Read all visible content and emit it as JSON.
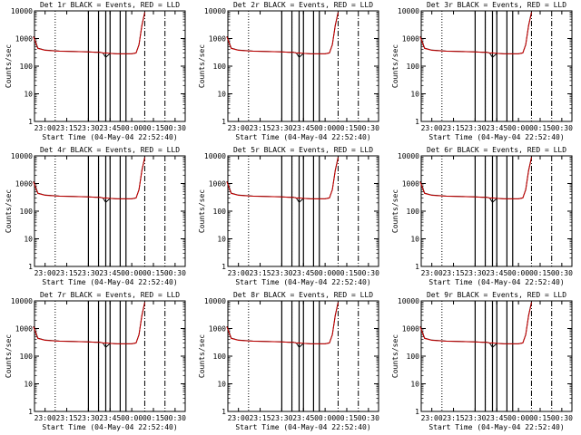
{
  "colors": {
    "events": "#000000",
    "lld": "#cc0000",
    "background": "#ffffff"
  },
  "chart_data": [
    {
      "type": "line",
      "title": "Det 1r BLACK = Events, RED = LLD",
      "xlabel": "Start Time (04-May-04 22:52:40)",
      "ylabel": "Counts/sec",
      "xticks": [
        "23:00",
        "23:15",
        "23:30",
        "23:45",
        "00:00",
        "00:15",
        "00:30"
      ],
      "yticks": [
        "1",
        "10",
        "100",
        "1000",
        "10000"
      ],
      "ylim": [
        1,
        10000
      ],
      "yscale": "log",
      "xlim": [
        "22:52:40",
        "00:37:00"
      ],
      "x": [
        "22:52",
        "22:55",
        "23:00",
        "23:10",
        "23:20",
        "23:30",
        "23:35",
        "23:38",
        "23:40",
        "23:42",
        "23:45",
        "23:50",
        "23:55",
        "00:00",
        "00:03",
        "00:05",
        "00:07",
        "00:09"
      ],
      "series": [
        {
          "values": [
            1200,
            450,
            380,
            350,
            340,
            330,
            320,
            320,
            300,
            210,
            290,
            280,
            280,
            280,
            300,
            600,
            3000,
            9000
          ]
        },
        {
          "values": [
            1150,
            440,
            375,
            348,
            338,
            328,
            318,
            318,
            298,
            300,
            290,
            280,
            280,
            280,
            300,
            590,
            2900,
            8800
          ]
        }
      ],
      "dotted_lines": [
        "23:07",
        "23:37"
      ],
      "solid_lines": [
        "23:30",
        "23:37",
        "23:42",
        "23:45",
        "23:52",
        "23:56"
      ],
      "dashdot_lines": [
        "00:09",
        "00:23"
      ]
    },
    {
      "type": "line",
      "title": "Det 2r BLACK = Events, RED = LLD",
      "xlabel": "Start Time (04-May-04 22:52:40)",
      "ylabel": "Counts/sec",
      "xticks": [
        "23:00",
        "23:15",
        "23:30",
        "23:45",
        "00:00",
        "00:15",
        "00:30"
      ],
      "yticks": [
        "1",
        "10",
        "100",
        "1000",
        "10000"
      ],
      "ylim": [
        1,
        10000
      ],
      "yscale": "log",
      "xlim": [
        "22:52:40",
        "00:37:00"
      ],
      "x": [
        "22:52",
        "22:55",
        "23:00",
        "23:10",
        "23:20",
        "23:30",
        "23:35",
        "23:38",
        "23:40",
        "23:42",
        "23:45",
        "23:50",
        "23:55",
        "00:00",
        "00:03",
        "00:05",
        "00:07",
        "00:09"
      ],
      "series": [
        {
          "values": [
            1200,
            450,
            380,
            350,
            340,
            330,
            320,
            320,
            300,
            210,
            290,
            280,
            280,
            280,
            300,
            600,
            3000,
            9000
          ]
        },
        {
          "values": [
            1150,
            440,
            375,
            348,
            338,
            328,
            318,
            318,
            298,
            300,
            290,
            280,
            280,
            280,
            300,
            590,
            2900,
            8800
          ]
        }
      ],
      "dotted_lines": [
        "23:07",
        "23:37"
      ],
      "solid_lines": [
        "23:30",
        "23:37",
        "23:42",
        "23:45",
        "23:52",
        "23:56"
      ],
      "dashdot_lines": [
        "00:09",
        "00:23"
      ]
    },
    {
      "type": "line",
      "title": "Det 3r BLACK = Events, RED = LLD",
      "xlabel": "Start Time (04-May-04 22:52:40)",
      "ylabel": "Counts/sec",
      "xticks": [
        "23:00",
        "23:15",
        "23:30",
        "23:45",
        "00:00",
        "00:15",
        "00:30"
      ],
      "yticks": [
        "1",
        "10",
        "100",
        "1000",
        "10000"
      ],
      "ylim": [
        1,
        10000
      ],
      "yscale": "log",
      "xlim": [
        "22:52:40",
        "00:37:00"
      ],
      "x": [
        "22:52",
        "22:55",
        "23:00",
        "23:10",
        "23:20",
        "23:30",
        "23:35",
        "23:38",
        "23:40",
        "23:42",
        "23:45",
        "23:50",
        "23:55",
        "00:00",
        "00:03",
        "00:05",
        "00:07",
        "00:09"
      ],
      "series": [
        {
          "values": [
            1200,
            450,
            380,
            350,
            340,
            330,
            320,
            320,
            300,
            210,
            290,
            280,
            280,
            280,
            300,
            600,
            3000,
            9000
          ]
        },
        {
          "values": [
            1150,
            440,
            375,
            348,
            338,
            328,
            318,
            318,
            298,
            300,
            290,
            280,
            280,
            280,
            300,
            590,
            2900,
            8800
          ]
        }
      ],
      "dotted_lines": [
        "23:07",
        "23:37"
      ],
      "solid_lines": [
        "23:30",
        "23:37",
        "23:42",
        "23:45",
        "23:52",
        "23:56"
      ],
      "dashdot_lines": [
        "00:09",
        "00:23"
      ]
    },
    {
      "type": "line",
      "title": "Det 4r BLACK = Events, RED = LLD",
      "xlabel": "Start Time (04-May-04 22:52:40)",
      "ylabel": "Counts/sec",
      "xticks": [
        "23:00",
        "23:15",
        "23:30",
        "23:45",
        "00:00",
        "00:15",
        "00:30"
      ],
      "yticks": [
        "1",
        "10",
        "100",
        "1000",
        "10000"
      ],
      "ylim": [
        1,
        10000
      ],
      "yscale": "log",
      "xlim": [
        "22:52:40",
        "00:37:00"
      ],
      "x": [
        "22:52",
        "22:55",
        "23:00",
        "23:10",
        "23:20",
        "23:30",
        "23:35",
        "23:38",
        "23:40",
        "23:42",
        "23:45",
        "23:50",
        "23:55",
        "00:00",
        "00:03",
        "00:05",
        "00:07",
        "00:09"
      ],
      "series": [
        {
          "values": [
            1200,
            450,
            380,
            350,
            340,
            330,
            320,
            320,
            300,
            210,
            290,
            280,
            280,
            280,
            300,
            600,
            3000,
            9000
          ]
        },
        {
          "values": [
            1150,
            440,
            375,
            348,
            338,
            328,
            318,
            318,
            298,
            300,
            290,
            280,
            280,
            280,
            300,
            590,
            2900,
            8800
          ]
        }
      ],
      "dotted_lines": [
        "23:07",
        "23:37"
      ],
      "solid_lines": [
        "23:30",
        "23:37",
        "23:42",
        "23:45",
        "23:52",
        "23:56"
      ],
      "dashdot_lines": [
        "00:09",
        "00:23"
      ]
    },
    {
      "type": "line",
      "title": "Det 5r BLACK = Events, RED = LLD",
      "xlabel": "Start Time (04-May-04 22:52:40)",
      "ylabel": "Counts/sec",
      "xticks": [
        "23:00",
        "23:15",
        "23:30",
        "23:45",
        "00:00",
        "00:15",
        "00:30"
      ],
      "yticks": [
        "1",
        "10",
        "100",
        "1000",
        "10000"
      ],
      "ylim": [
        1,
        10000
      ],
      "yscale": "log",
      "xlim": [
        "22:52:40",
        "00:37:00"
      ],
      "x": [
        "22:52",
        "22:55",
        "23:00",
        "23:10",
        "23:20",
        "23:30",
        "23:35",
        "23:38",
        "23:40",
        "23:42",
        "23:45",
        "23:50",
        "23:55",
        "00:00",
        "00:03",
        "00:05",
        "00:07",
        "00:09"
      ],
      "series": [
        {
          "values": [
            1200,
            450,
            380,
            350,
            340,
            330,
            320,
            320,
            300,
            210,
            290,
            280,
            280,
            280,
            300,
            600,
            3000,
            9000
          ]
        },
        {
          "values": [
            1150,
            440,
            375,
            348,
            338,
            328,
            318,
            318,
            298,
            300,
            290,
            280,
            280,
            280,
            300,
            590,
            2900,
            8800
          ]
        }
      ],
      "dotted_lines": [
        "23:07",
        "23:37"
      ],
      "solid_lines": [
        "23:30",
        "23:37",
        "23:42",
        "23:45",
        "23:52",
        "23:56"
      ],
      "dashdot_lines": [
        "00:09",
        "00:23"
      ]
    },
    {
      "type": "line",
      "title": "Det 6r BLACK = Events, RED = LLD",
      "xlabel": "Start Time (04-May-04 22:52:40)",
      "ylabel": "Counts/sec",
      "xticks": [
        "23:00",
        "23:15",
        "23:30",
        "23:45",
        "00:00",
        "00:15",
        "00:30"
      ],
      "yticks": [
        "1",
        "10",
        "100",
        "1000",
        "10000"
      ],
      "ylim": [
        1,
        10000
      ],
      "yscale": "log",
      "xlim": [
        "22:52:40",
        "00:37:00"
      ],
      "x": [
        "22:52",
        "22:55",
        "23:00",
        "23:10",
        "23:20",
        "23:30",
        "23:35",
        "23:38",
        "23:40",
        "23:42",
        "23:45",
        "23:50",
        "23:55",
        "00:00",
        "00:03",
        "00:05",
        "00:07",
        "00:09"
      ],
      "series": [
        {
          "values": [
            1200,
            450,
            380,
            350,
            340,
            330,
            320,
            320,
            300,
            210,
            290,
            280,
            280,
            280,
            300,
            600,
            3000,
            9000
          ]
        },
        {
          "values": [
            1150,
            440,
            375,
            348,
            338,
            328,
            318,
            318,
            298,
            300,
            290,
            280,
            280,
            280,
            300,
            590,
            2900,
            8800
          ]
        }
      ],
      "dotted_lines": [
        "23:07",
        "23:37"
      ],
      "solid_lines": [
        "23:30",
        "23:37",
        "23:42",
        "23:45",
        "23:52",
        "23:56"
      ],
      "dashdot_lines": [
        "00:09",
        "00:23"
      ]
    },
    {
      "type": "line",
      "title": "Det 7r BLACK = Events, RED = LLD",
      "xlabel": "Start Time (04-May-04 22:52:40)",
      "ylabel": "Counts/sec",
      "xticks": [
        "23:00",
        "23:15",
        "23:30",
        "23:45",
        "00:00",
        "00:15",
        "00:30"
      ],
      "yticks": [
        "1",
        "10",
        "100",
        "1000",
        "10000"
      ],
      "ylim": [
        1,
        10000
      ],
      "yscale": "log",
      "xlim": [
        "22:52:40",
        "00:37:00"
      ],
      "x": [
        "22:52",
        "22:55",
        "23:00",
        "23:10",
        "23:20",
        "23:30",
        "23:35",
        "23:38",
        "23:40",
        "23:42",
        "23:45",
        "23:50",
        "23:55",
        "00:00",
        "00:03",
        "00:05",
        "00:07",
        "00:09"
      ],
      "series": [
        {
          "values": [
            1200,
            450,
            380,
            350,
            340,
            330,
            320,
            320,
            300,
            210,
            290,
            280,
            280,
            280,
            300,
            600,
            3000,
            9000
          ]
        },
        {
          "values": [
            1150,
            440,
            375,
            348,
            338,
            328,
            318,
            318,
            298,
            300,
            290,
            280,
            280,
            280,
            300,
            590,
            2900,
            8800
          ]
        }
      ],
      "dotted_lines": [
        "23:07",
        "23:37"
      ],
      "solid_lines": [
        "23:30",
        "23:37",
        "23:42",
        "23:45",
        "23:52",
        "23:56"
      ],
      "dashdot_lines": [
        "00:09",
        "00:23"
      ]
    },
    {
      "type": "line",
      "title": "Det 8r BLACK = Events, RED = LLD",
      "xlabel": "Start Time (04-May-04 22:52:40)",
      "ylabel": "Counts/sec",
      "xticks": [
        "23:00",
        "23:15",
        "23:30",
        "23:45",
        "00:00",
        "00:15",
        "00:30"
      ],
      "yticks": [
        "1",
        "10",
        "100",
        "1000",
        "10000"
      ],
      "ylim": [
        1,
        10000
      ],
      "yscale": "log",
      "xlim": [
        "22:52:40",
        "00:37:00"
      ],
      "x": [
        "22:52",
        "22:55",
        "23:00",
        "23:10",
        "23:20",
        "23:30",
        "23:35",
        "23:38",
        "23:40",
        "23:42",
        "23:45",
        "23:50",
        "23:55",
        "00:00",
        "00:03",
        "00:05",
        "00:07",
        "00:09"
      ],
      "series": [
        {
          "values": [
            1200,
            450,
            380,
            350,
            340,
            330,
            320,
            320,
            300,
            210,
            290,
            280,
            280,
            280,
            300,
            600,
            3000,
            9000
          ]
        },
        {
          "values": [
            1150,
            440,
            375,
            348,
            338,
            328,
            318,
            318,
            298,
            300,
            290,
            280,
            280,
            280,
            300,
            590,
            2900,
            8800
          ]
        }
      ],
      "dotted_lines": [
        "23:07",
        "23:37"
      ],
      "solid_lines": [
        "23:30",
        "23:37",
        "23:42",
        "23:45",
        "23:52",
        "23:56"
      ],
      "dashdot_lines": [
        "00:09",
        "00:23"
      ]
    },
    {
      "type": "line",
      "title": "Det 9r BLACK = Events, RED = LLD",
      "xlabel": "Start Time (04-May-04 22:52:40)",
      "ylabel": "Counts/sec",
      "xticks": [
        "23:00",
        "23:15",
        "23:30",
        "23:45",
        "00:00",
        "00:15",
        "00:30"
      ],
      "yticks": [
        "1",
        "10",
        "100",
        "1000",
        "10000"
      ],
      "ylim": [
        1,
        10000
      ],
      "yscale": "log",
      "xlim": [
        "22:52:40",
        "00:37:00"
      ],
      "x": [
        "22:52",
        "22:55",
        "23:00",
        "23:10",
        "23:20",
        "23:30",
        "23:35",
        "23:38",
        "23:40",
        "23:42",
        "23:45",
        "23:50",
        "23:55",
        "00:00",
        "00:03",
        "00:05",
        "00:07",
        "00:09"
      ],
      "series": [
        {
          "values": [
            1200,
            450,
            380,
            350,
            340,
            330,
            320,
            320,
            300,
            210,
            290,
            280,
            280,
            280,
            300,
            600,
            3000,
            9000
          ]
        },
        {
          "values": [
            1150,
            440,
            375,
            348,
            338,
            328,
            318,
            318,
            298,
            300,
            290,
            280,
            280,
            280,
            300,
            590,
            2900,
            8800
          ]
        }
      ],
      "dotted_lines": [
        "23:07",
        "23:37"
      ],
      "solid_lines": [
        "23:30",
        "23:37",
        "23:42",
        "23:45",
        "23:52",
        "23:56"
      ],
      "dashdot_lines": [
        "00:09",
        "00:23"
      ]
    }
  ]
}
